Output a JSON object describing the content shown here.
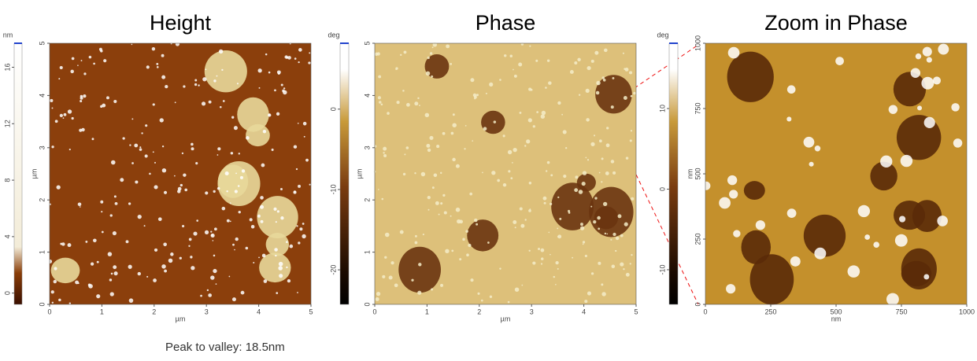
{
  "panels": [
    {
      "title": "Height",
      "x_label": "µm",
      "y_label": "µm",
      "xlim": [
        0,
        5
      ],
      "ylim": [
        0,
        5
      ],
      "xticks": [
        0,
        1,
        2,
        3,
        4,
        5
      ],
      "yticks": [
        0,
        1,
        2,
        3,
        4,
        5
      ],
      "colorbar": {
        "unit": "nm",
        "lim": [
          -0.8,
          17.7
        ],
        "ticks": [
          0,
          4,
          8,
          12,
          16
        ]
      }
    },
    {
      "title": "Phase",
      "x_label": "µm",
      "y_label": "µm",
      "xlim": [
        0,
        5
      ],
      "ylim": [
        0,
        5
      ],
      "xticks": [
        0,
        1,
        2,
        3,
        4,
        5
      ],
      "yticks": [
        0,
        1,
        2,
        3,
        4,
        5
      ],
      "colorbar": {
        "unit": "deg",
        "lim": [
          -24.3,
          8.2
        ],
        "ticks": [
          -20,
          -10,
          0
        ]
      }
    },
    {
      "title": "Zoom in Phase",
      "x_label": "nm",
      "y_label": "nm",
      "xlim": [
        0,
        1000
      ],
      "ylim": [
        0,
        1000
      ],
      "xticks": [
        0,
        250,
        500,
        750,
        1000
      ],
      "yticks": [
        0,
        250,
        500,
        750,
        1000
      ],
      "colorbar": {
        "unit": "deg",
        "lim": [
          -14.3,
          18.1
        ],
        "ticks": [
          -10,
          0,
          10
        ]
      }
    }
  ],
  "footnote": "Peak to valley: 18.5nm"
}
